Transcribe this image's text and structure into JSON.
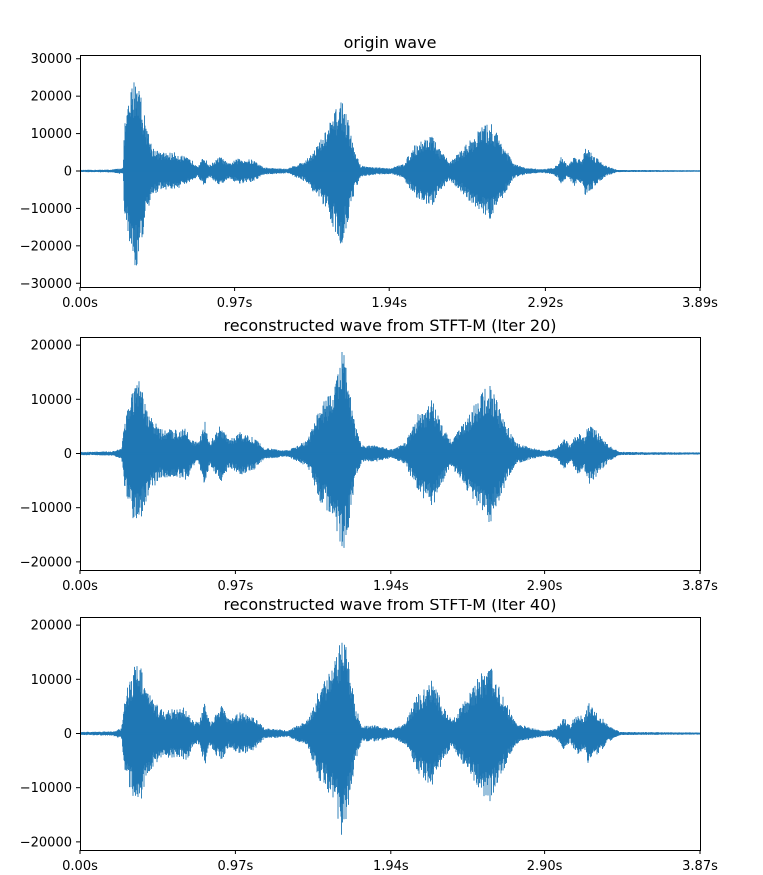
{
  "colors": {
    "wave": "#1f77b4",
    "axes": "#000000",
    "background": "#ffffff"
  },
  "chart_data": [
    {
      "type": "line",
      "title": "origin wave",
      "xlabel": "",
      "ylabel": "",
      "x_ticks": [
        "0.00s",
        "0.97s",
        "1.94s",
        "2.92s",
        "3.89s"
      ],
      "x_tick_values": [
        0.0,
        0.97,
        1.94,
        2.92,
        3.89
      ],
      "xlim": [
        0.0,
        3.89
      ],
      "y_ticks": [
        30000,
        20000,
        10000,
        0,
        -10000,
        -20000,
        -30000
      ],
      "y_tick_labels": [
        "30000",
        "20000",
        "10000",
        "0",
        "−10000",
        "−20000",
        "−30000"
      ],
      "ylim": [
        -31000,
        31000
      ],
      "grid": false,
      "series": [
        {
          "envelope": [
            {
              "t": 0.0,
              "amp": 300
            },
            {
              "t": 0.2,
              "amp": 400
            },
            {
              "t": 0.27,
              "amp": 900
            },
            {
              "t": 0.28,
              "amp": 13000
            },
            {
              "t": 0.33,
              "amp": 24000
            },
            {
              "t": 0.36,
              "amp": 27000
            },
            {
              "t": 0.4,
              "amp": 16000
            },
            {
              "t": 0.45,
              "amp": 7000
            },
            {
              "t": 0.5,
              "amp": 5000
            },
            {
              "t": 0.6,
              "amp": 5000
            },
            {
              "t": 0.7,
              "amp": 3000
            },
            {
              "t": 0.74,
              "amp": 1500
            },
            {
              "t": 0.78,
              "amp": 4000
            },
            {
              "t": 0.81,
              "amp": 1500
            },
            {
              "t": 0.88,
              "amp": 4000
            },
            {
              "t": 0.93,
              "amp": 2000
            },
            {
              "t": 1.0,
              "amp": 3500
            },
            {
              "t": 1.09,
              "amp": 3000
            },
            {
              "t": 1.15,
              "amp": 1000
            },
            {
              "t": 1.3,
              "amp": 600
            },
            {
              "t": 1.42,
              "amp": 3000
            },
            {
              "t": 1.52,
              "amp": 9000
            },
            {
              "t": 1.6,
              "amp": 16000
            },
            {
              "t": 1.64,
              "amp": 20000
            },
            {
              "t": 1.68,
              "amp": 14000
            },
            {
              "t": 1.72,
              "amp": 6000
            },
            {
              "t": 1.76,
              "amp": 1500
            },
            {
              "t": 1.85,
              "amp": 1000
            },
            {
              "t": 1.95,
              "amp": 800
            },
            {
              "t": 2.03,
              "amp": 2000
            },
            {
              "t": 2.1,
              "amp": 7000
            },
            {
              "t": 2.2,
              "amp": 10000
            },
            {
              "t": 2.27,
              "amp": 5000
            },
            {
              "t": 2.32,
              "amp": 2500
            },
            {
              "t": 2.4,
              "amp": 6000
            },
            {
              "t": 2.52,
              "amp": 12000
            },
            {
              "t": 2.58,
              "amp": 13000
            },
            {
              "t": 2.66,
              "amp": 7000
            },
            {
              "t": 2.72,
              "amp": 2000
            },
            {
              "t": 2.8,
              "amp": 800
            },
            {
              "t": 2.9,
              "amp": 500
            },
            {
              "t": 2.97,
              "amp": 900
            },
            {
              "t": 3.0,
              "amp": 2000
            },
            {
              "t": 3.02,
              "amp": 4000
            },
            {
              "t": 3.06,
              "amp": 1500
            },
            {
              "t": 3.1,
              "amp": 4000
            },
            {
              "t": 3.15,
              "amp": 3000
            },
            {
              "t": 3.17,
              "amp": 7000
            },
            {
              "t": 3.23,
              "amp": 4000
            },
            {
              "t": 3.3,
              "amp": 1500
            },
            {
              "t": 3.37,
              "amp": 300
            },
            {
              "t": 3.89,
              "amp": 200
            }
          ]
        }
      ]
    },
    {
      "type": "line",
      "title": "reconstructed wave from STFT-M (Iter 20)",
      "xlabel": "",
      "ylabel": "",
      "x_ticks": [
        "0.00s",
        "0.97s",
        "1.94s",
        "2.90s",
        "3.87s"
      ],
      "x_tick_values": [
        0.0,
        0.97,
        1.94,
        2.9,
        3.87
      ],
      "xlim": [
        0.0,
        3.87
      ],
      "y_ticks": [
        20000,
        10000,
        0,
        -10000,
        -20000
      ],
      "y_tick_labels": [
        "20000",
        "10000",
        "0",
        "−10000",
        "−20000"
      ],
      "ylim": [
        -21500,
        21500
      ],
      "grid": false,
      "series": [
        {
          "envelope": [
            {
              "t": 0.0,
              "amp": 300
            },
            {
              "t": 0.2,
              "amp": 400
            },
            {
              "t": 0.26,
              "amp": 1000
            },
            {
              "t": 0.28,
              "amp": 7000
            },
            {
              "t": 0.33,
              "amp": 12000
            },
            {
              "t": 0.37,
              "amp": 13500
            },
            {
              "t": 0.42,
              "amp": 8000
            },
            {
              "t": 0.5,
              "amp": 4500
            },
            {
              "t": 0.6,
              "amp": 4500
            },
            {
              "t": 0.67,
              "amp": 5000
            },
            {
              "t": 0.7,
              "amp": 2500
            },
            {
              "t": 0.74,
              "amp": 2000
            },
            {
              "t": 0.78,
              "amp": 6000
            },
            {
              "t": 0.81,
              "amp": 2000
            },
            {
              "t": 0.88,
              "amp": 5500
            },
            {
              "t": 0.93,
              "amp": 2500
            },
            {
              "t": 1.0,
              "amp": 4000
            },
            {
              "t": 1.09,
              "amp": 3000
            },
            {
              "t": 1.15,
              "amp": 1000
            },
            {
              "t": 1.3,
              "amp": 600
            },
            {
              "t": 1.42,
              "amp": 2500
            },
            {
              "t": 1.5,
              "amp": 9000
            },
            {
              "t": 1.58,
              "amp": 12000
            },
            {
              "t": 1.62,
              "amp": 17000
            },
            {
              "t": 1.64,
              "amp": 19500
            },
            {
              "t": 1.68,
              "amp": 13000
            },
            {
              "t": 1.72,
              "amp": 5000
            },
            {
              "t": 1.76,
              "amp": 1500
            },
            {
              "t": 1.85,
              "amp": 1500
            },
            {
              "t": 1.95,
              "amp": 800
            },
            {
              "t": 2.03,
              "amp": 2000
            },
            {
              "t": 2.1,
              "amp": 7000
            },
            {
              "t": 2.2,
              "amp": 10000
            },
            {
              "t": 2.27,
              "amp": 5000
            },
            {
              "t": 2.32,
              "amp": 2500
            },
            {
              "t": 2.4,
              "amp": 6000
            },
            {
              "t": 2.5,
              "amp": 11000
            },
            {
              "t": 2.56,
              "amp": 13000
            },
            {
              "t": 2.64,
              "amp": 7000
            },
            {
              "t": 2.72,
              "amp": 2000
            },
            {
              "t": 2.8,
              "amp": 1200
            },
            {
              "t": 2.9,
              "amp": 500
            },
            {
              "t": 2.97,
              "amp": 900
            },
            {
              "t": 3.0,
              "amp": 2000
            },
            {
              "t": 3.02,
              "amp": 3000
            },
            {
              "t": 3.06,
              "amp": 1500
            },
            {
              "t": 3.1,
              "amp": 4000
            },
            {
              "t": 3.15,
              "amp": 3000
            },
            {
              "t": 3.17,
              "amp": 6000
            },
            {
              "t": 3.23,
              "amp": 4000
            },
            {
              "t": 3.3,
              "amp": 1500
            },
            {
              "t": 3.37,
              "amp": 300
            },
            {
              "t": 3.87,
              "amp": 200
            }
          ]
        }
      ]
    },
    {
      "type": "line",
      "title": "reconstructed wave from STFT-M (Iter 40)",
      "xlabel": "",
      "ylabel": "",
      "x_ticks": [
        "0.00s",
        "0.97s",
        "1.94s",
        "2.90s",
        "3.87s"
      ],
      "x_tick_values": [
        0.0,
        0.97,
        1.94,
        2.9,
        3.87
      ],
      "xlim": [
        0.0,
        3.87
      ],
      "y_ticks": [
        20000,
        10000,
        0,
        -10000,
        -20000
      ],
      "y_tick_labels": [
        "20000",
        "10000",
        "0",
        "−10000",
        "−20000"
      ],
      "ylim": [
        -21500,
        21500
      ],
      "grid": false,
      "series": [
        {
          "envelope": [
            {
              "t": 0.0,
              "amp": 300
            },
            {
              "t": 0.2,
              "amp": 400
            },
            {
              "t": 0.26,
              "amp": 1000
            },
            {
              "t": 0.28,
              "amp": 7000
            },
            {
              "t": 0.33,
              "amp": 12000
            },
            {
              "t": 0.37,
              "amp": 14000
            },
            {
              "t": 0.42,
              "amp": 8000
            },
            {
              "t": 0.5,
              "amp": 4500
            },
            {
              "t": 0.6,
              "amp": 4500
            },
            {
              "t": 0.67,
              "amp": 5000
            },
            {
              "t": 0.7,
              "amp": 2500
            },
            {
              "t": 0.74,
              "amp": 2000
            },
            {
              "t": 0.78,
              "amp": 6000
            },
            {
              "t": 0.81,
              "amp": 2000
            },
            {
              "t": 0.88,
              "amp": 5500
            },
            {
              "t": 0.93,
              "amp": 2500
            },
            {
              "t": 1.0,
              "amp": 4000
            },
            {
              "t": 1.09,
              "amp": 3000
            },
            {
              "t": 1.15,
              "amp": 1000
            },
            {
              "t": 1.3,
              "amp": 600
            },
            {
              "t": 1.42,
              "amp": 2500
            },
            {
              "t": 1.5,
              "amp": 9000
            },
            {
              "t": 1.58,
              "amp": 12000
            },
            {
              "t": 1.62,
              "amp": 17000
            },
            {
              "t": 1.64,
              "amp": 20000
            },
            {
              "t": 1.68,
              "amp": 13000
            },
            {
              "t": 1.72,
              "amp": 5000
            },
            {
              "t": 1.76,
              "amp": 1500
            },
            {
              "t": 1.85,
              "amp": 1500
            },
            {
              "t": 1.95,
              "amp": 800
            },
            {
              "t": 2.03,
              "amp": 2000
            },
            {
              "t": 2.1,
              "amp": 7000
            },
            {
              "t": 2.2,
              "amp": 10000
            },
            {
              "t": 2.27,
              "amp": 5000
            },
            {
              "t": 2.32,
              "amp": 2500
            },
            {
              "t": 2.4,
              "amp": 6000
            },
            {
              "t": 2.5,
              "amp": 11000
            },
            {
              "t": 2.56,
              "amp": 13000
            },
            {
              "t": 2.64,
              "amp": 7000
            },
            {
              "t": 2.72,
              "amp": 2000
            },
            {
              "t": 2.8,
              "amp": 1200
            },
            {
              "t": 2.9,
              "amp": 500
            },
            {
              "t": 2.97,
              "amp": 900
            },
            {
              "t": 3.0,
              "amp": 2000
            },
            {
              "t": 3.02,
              "amp": 3000
            },
            {
              "t": 3.06,
              "amp": 1500
            },
            {
              "t": 3.1,
              "amp": 4000
            },
            {
              "t": 3.15,
              "amp": 3000
            },
            {
              "t": 3.17,
              "amp": 6000
            },
            {
              "t": 3.23,
              "amp": 4000
            },
            {
              "t": 3.3,
              "amp": 1500
            },
            {
              "t": 3.37,
              "amp": 300
            },
            {
              "t": 3.87,
              "amp": 200
            }
          ]
        }
      ]
    }
  ]
}
